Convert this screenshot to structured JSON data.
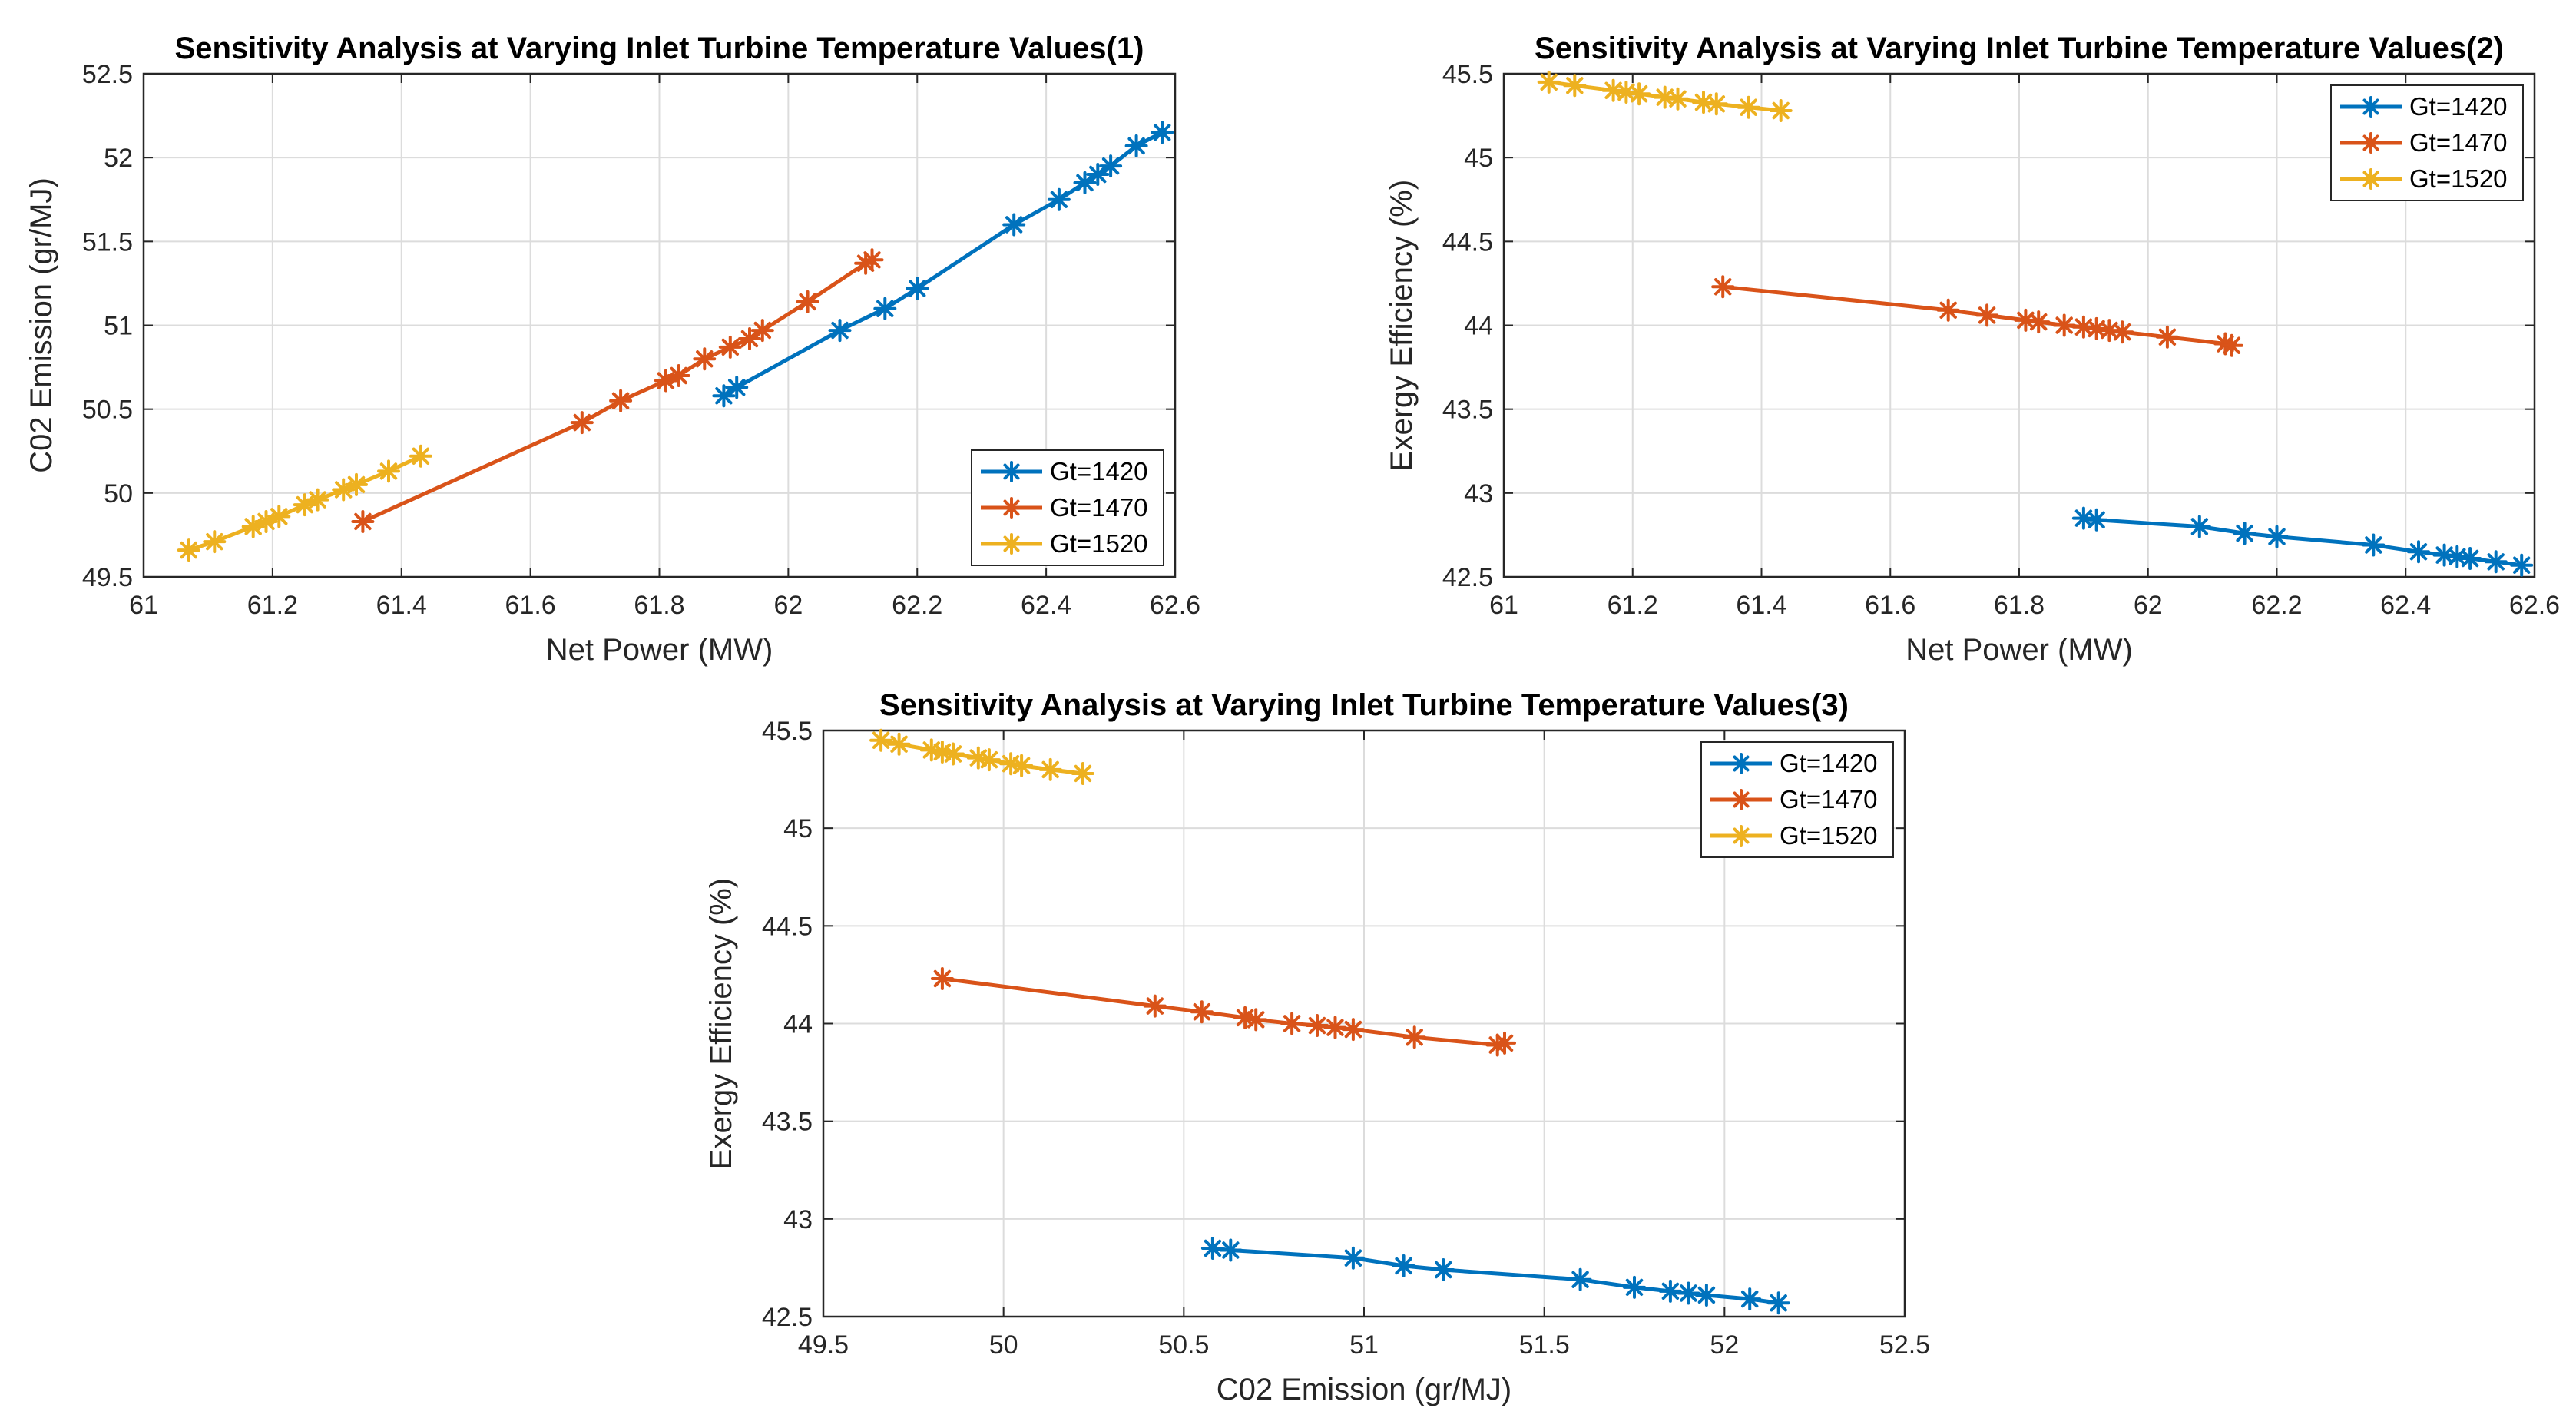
{
  "colors": {
    "Gt=1420": "#0072BD",
    "Gt=1470": "#D95319",
    "Gt=1520": "#EDB120"
  },
  "chart_data": [
    {
      "type": "line",
      "title": "Sensitivity Analysis at Varying Inlet Turbine Temperature Values(1)",
      "xlabel": "Net Power (MW)",
      "ylabel": "C02 Emission (gr/MJ)",
      "xlim": [
        61,
        62.6
      ],
      "ylim": [
        49.5,
        52.5
      ],
      "xticks": [
        "61",
        "61.2",
        "61.4",
        "61.6",
        "61.8",
        "62",
        "62.2",
        "62.4",
        "62.6"
      ],
      "yticks": [
        "49.5",
        "50",
        "50.5",
        "51",
        "51.5",
        "52",
        "52.5"
      ],
      "grid": true,
      "legend": "bottom-right",
      "series": [
        {
          "name": "Gt=1420",
          "x": [
            61.9,
            61.92,
            62.08,
            62.15,
            62.2,
            62.35,
            62.42,
            62.46,
            62.48,
            62.5,
            62.54,
            62.58
          ],
          "y": [
            50.58,
            50.63,
            50.97,
            51.1,
            51.22,
            51.6,
            51.75,
            51.85,
            51.9,
            51.95,
            52.07,
            52.15
          ]
        },
        {
          "name": "Gt=1470",
          "x": [
            61.34,
            61.68,
            61.74,
            61.81,
            61.83,
            61.87,
            61.91,
            61.94,
            61.96,
            62.03,
            62.12,
            62.13
          ],
          "y": [
            49.83,
            50.42,
            50.55,
            50.67,
            50.7,
            50.8,
            50.87,
            50.92,
            50.97,
            51.14,
            51.37,
            51.39
          ]
        },
        {
          "name": "Gt=1520",
          "x": [
            61.07,
            61.11,
            61.17,
            61.19,
            61.21,
            61.25,
            61.27,
            61.31,
            61.33,
            61.38,
            61.43
          ],
          "y": [
            49.66,
            49.71,
            49.8,
            49.83,
            49.86,
            49.93,
            49.96,
            50.02,
            50.05,
            50.13,
            50.22
          ]
        }
      ]
    },
    {
      "type": "line",
      "title": "Sensitivity Analysis at Varying Inlet Turbine Temperature Values(2)",
      "xlabel": "Net Power (MW)",
      "ylabel": "Exergy Efficiency (%)",
      "xlim": [
        61,
        62.6
      ],
      "ylim": [
        42.5,
        45.5
      ],
      "xticks": [
        "61",
        "61.2",
        "61.4",
        "61.6",
        "61.8",
        "62",
        "62.2",
        "62.4",
        "62.6"
      ],
      "yticks": [
        "42.5",
        "43",
        "43.5",
        "44",
        "44.5",
        "45",
        "45.5"
      ],
      "grid": true,
      "legend": "top-right",
      "series": [
        {
          "name": "Gt=1420",
          "x": [
            61.9,
            61.92,
            62.08,
            62.15,
            62.2,
            62.35,
            62.42,
            62.46,
            62.48,
            62.5,
            62.54,
            62.58
          ],
          "y": [
            42.85,
            42.84,
            42.8,
            42.76,
            42.74,
            42.69,
            42.65,
            42.63,
            42.62,
            42.61,
            42.59,
            42.57
          ]
        },
        {
          "name": "Gt=1470",
          "x": [
            61.34,
            61.69,
            61.75,
            61.81,
            61.83,
            61.87,
            61.9,
            61.92,
            61.94,
            61.96,
            62.03,
            62.12,
            62.13
          ],
          "y": [
            44.23,
            44.09,
            44.06,
            44.03,
            44.02,
            44.0,
            43.99,
            43.98,
            43.97,
            43.96,
            43.93,
            43.89,
            43.88
          ]
        },
        {
          "name": "Gt=1520",
          "x": [
            61.07,
            61.11,
            61.17,
            61.19,
            61.21,
            61.25,
            61.27,
            61.31,
            61.33,
            61.38,
            61.43
          ],
          "y": [
            45.45,
            45.43,
            45.4,
            45.39,
            45.38,
            45.36,
            45.35,
            45.33,
            45.32,
            45.3,
            45.28
          ]
        }
      ]
    },
    {
      "type": "line",
      "title": "Sensitivity Analysis at Varying Inlet Turbine Temperature Values(3)",
      "xlabel": "C02 Emission (gr/MJ)",
      "ylabel": "Exergy Efficiency (%)",
      "xlim": [
        49.5,
        52.5
      ],
      "ylim": [
        42.5,
        45.5
      ],
      "xticks": [
        "49.5",
        "50",
        "50.5",
        "51",
        "51.5",
        "52",
        "52.5"
      ],
      "yticks": [
        "42.5",
        "43",
        "43.5",
        "44",
        "44.5",
        "45",
        "45.5"
      ],
      "grid": true,
      "legend": "top-right",
      "series": [
        {
          "name": "Gt=1420",
          "x": [
            50.58,
            50.63,
            50.97,
            51.11,
            51.22,
            51.6,
            51.75,
            51.85,
            51.9,
            51.95,
            52.07,
            52.15
          ],
          "y": [
            42.85,
            42.84,
            42.8,
            42.76,
            42.74,
            42.69,
            42.65,
            42.63,
            42.62,
            42.61,
            42.59,
            42.57
          ]
        },
        {
          "name": "Gt=1470",
          "x": [
            49.83,
            50.42,
            50.55,
            50.67,
            50.7,
            50.8,
            50.87,
            50.92,
            50.97,
            51.14,
            51.37,
            51.39
          ],
          "y": [
            44.23,
            44.09,
            44.06,
            44.03,
            44.02,
            44.0,
            43.99,
            43.98,
            43.97,
            43.93,
            43.89,
            43.9
          ]
        },
        {
          "name": "Gt=1520",
          "x": [
            49.66,
            49.71,
            49.8,
            49.83,
            49.86,
            49.93,
            49.96,
            50.02,
            50.05,
            50.13,
            50.22
          ],
          "y": [
            45.45,
            45.43,
            45.4,
            45.39,
            45.38,
            45.36,
            45.35,
            45.33,
            45.32,
            45.3,
            45.28
          ]
        }
      ]
    }
  ]
}
